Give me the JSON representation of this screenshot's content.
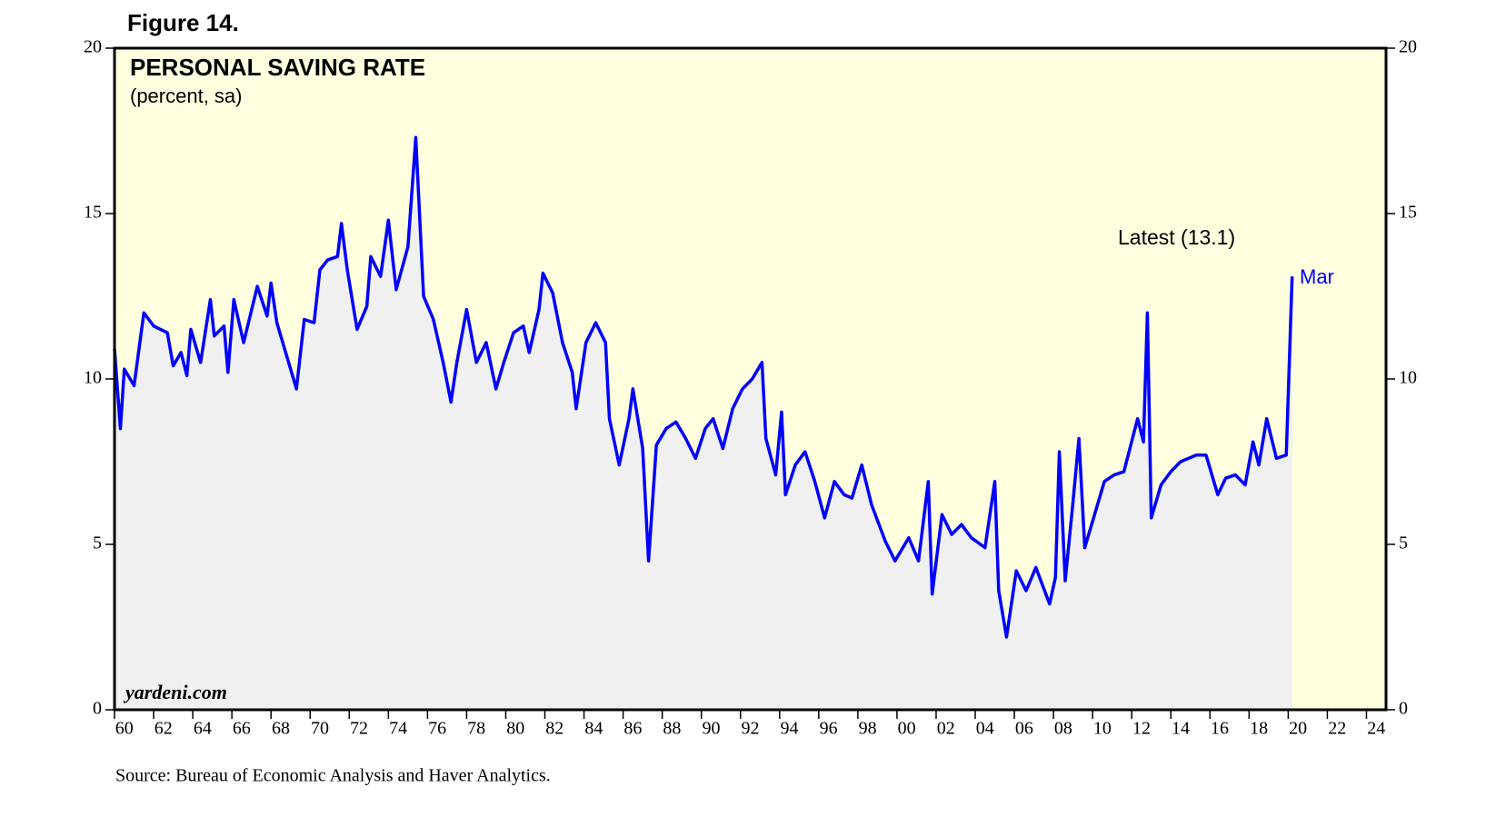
{
  "chart_data": {
    "type": "line",
    "figure_label": "Figure 14.",
    "title": "PERSONAL SAVING RATE",
    "subtitle": "(percent, sa)",
    "watermark": "yardeni.com",
    "annotation": "Latest (13.1)",
    "point_label": "Mar",
    "source": "Source: Bureau of Economic Analysis and Haver Analytics.",
    "color": "#0000ff",
    "fill_color": "#f0f0f0",
    "background": "#ffffe0",
    "x": [
      1960.0,
      1960.3,
      1960.5,
      1961.0,
      1961.5,
      1962.0,
      1962.7,
      1963.0,
      1963.4,
      1963.7,
      1963.9,
      1964.4,
      1964.9,
      1965.1,
      1965.6,
      1965.8,
      1966.1,
      1966.6,
      1967.3,
      1967.8,
      1968.0,
      1968.3,
      1968.8,
      1969.3,
      1969.7,
      1970.2,
      1970.5,
      1970.9,
      1971.4,
      1971.6,
      1971.9,
      1972.4,
      1972.9,
      1973.1,
      1973.6,
      1974.0,
      1974.4,
      1975.0,
      1975.4,
      1975.8,
      1976.3,
      1976.8,
      1977.2,
      1977.5,
      1978.0,
      1978.5,
      1979.0,
      1979.5,
      1979.9,
      1980.4,
      1980.9,
      1981.2,
      1981.7,
      1981.9,
      1982.4,
      1982.9,
      1983.4,
      1983.6,
      1984.1,
      1984.6,
      1985.1,
      1985.3,
      1985.8,
      1986.3,
      1986.5,
      1987.0,
      1987.3,
      1987.7,
      1988.2,
      1988.7,
      1989.2,
      1989.7,
      1990.2,
      1990.6,
      1991.1,
      1991.6,
      1992.1,
      1992.6,
      1993.1,
      1993.3,
      1993.8,
      1994.1,
      1994.3,
      1994.8,
      1995.3,
      1995.8,
      1996.3,
      1996.8,
      1997.3,
      1997.7,
      1998.2,
      1998.7,
      1999.4,
      1999.9,
      2000.6,
      2001.1,
      2001.6,
      2001.8,
      2002.3,
      2002.8,
      2003.3,
      2003.8,
      2004.5,
      2005.0,
      2005.2,
      2005.6,
      2006.1,
      2006.6,
      2007.1,
      2007.8,
      2008.1,
      2008.3,
      2008.6,
      2009.0,
      2009.3,
      2009.6,
      2010.1,
      2010.6,
      2011.1,
      2011.6,
      2012.3,
      2012.6,
      2012.8,
      2013.0,
      2013.5,
      2014.0,
      2014.5,
      2015.3,
      2015.8,
      2016.4,
      2016.8,
      2017.3,
      2017.8,
      2018.2,
      2018.5,
      2018.9,
      2019.4,
      2019.9,
      2020.2
    ],
    "values": [
      10.9,
      8.5,
      10.3,
      9.8,
      12.0,
      11.6,
      11.4,
      10.4,
      10.8,
      10.1,
      11.5,
      10.5,
      12.4,
      11.3,
      11.6,
      10.2,
      12.4,
      11.1,
      12.8,
      11.9,
      12.9,
      11.7,
      10.7,
      9.7,
      11.8,
      11.7,
      13.3,
      13.6,
      13.7,
      14.7,
      13.3,
      11.5,
      12.2,
      13.7,
      13.1,
      14.8,
      12.7,
      14.0,
      17.3,
      12.5,
      11.8,
      10.5,
      9.3,
      10.5,
      12.1,
      10.5,
      11.1,
      9.7,
      10.5,
      11.4,
      11.6,
      10.8,
      12.1,
      13.2,
      12.6,
      11.1,
      10.2,
      9.1,
      11.1,
      11.7,
      11.1,
      8.8,
      7.4,
      8.8,
      9.7,
      7.9,
      4.5,
      8.0,
      8.5,
      8.7,
      8.2,
      7.6,
      8.5,
      8.8,
      7.9,
      9.1,
      9.7,
      10.0,
      10.5,
      8.2,
      7.1,
      9.0,
      6.5,
      7.4,
      7.8,
      6.9,
      5.8,
      6.9,
      6.5,
      6.4,
      7.4,
      6.2,
      5.1,
      4.5,
      5.2,
      4.5,
      6.9,
      3.5,
      5.9,
      5.3,
      5.6,
      5.2,
      4.9,
      6.9,
      3.6,
      2.2,
      4.2,
      3.6,
      4.3,
      3.2,
      4.0,
      7.8,
      3.9,
      6.3,
      8.2,
      4.9,
      5.9,
      6.9,
      7.1,
      7.2,
      8.8,
      8.1,
      12.0,
      5.8,
      6.8,
      7.2,
      7.5,
      7.7,
      7.7,
      6.5,
      7.0,
      7.1,
      6.8,
      8.1,
      7.4,
      8.8,
      7.6,
      7.7,
      13.1
    ],
    "xlim": [
      1960,
      2025
    ],
    "xticks": [
      {
        "value": 1960,
        "label": "60"
      },
      {
        "value": 1962,
        "label": "62"
      },
      {
        "value": 1964,
        "label": "64"
      },
      {
        "value": 1966,
        "label": "66"
      },
      {
        "value": 1968,
        "label": "68"
      },
      {
        "value": 1970,
        "label": "70"
      },
      {
        "value": 1972,
        "label": "72"
      },
      {
        "value": 1974,
        "label": "74"
      },
      {
        "value": 1976,
        "label": "76"
      },
      {
        "value": 1978,
        "label": "78"
      },
      {
        "value": 1980,
        "label": "80"
      },
      {
        "value": 1982,
        "label": "82"
      },
      {
        "value": 1984,
        "label": "84"
      },
      {
        "value": 1986,
        "label": "86"
      },
      {
        "value": 1988,
        "label": "88"
      },
      {
        "value": 1990,
        "label": "90"
      },
      {
        "value": 1992,
        "label": "92"
      },
      {
        "value": 1994,
        "label": "94"
      },
      {
        "value": 1996,
        "label": "96"
      },
      {
        "value": 1998,
        "label": "98"
      },
      {
        "value": 2000,
        "label": "00"
      },
      {
        "value": 2002,
        "label": "02"
      },
      {
        "value": 2004,
        "label": "04"
      },
      {
        "value": 2006,
        "label": "06"
      },
      {
        "value": 2008,
        "label": "08"
      },
      {
        "value": 2010,
        "label": "10"
      },
      {
        "value": 2012,
        "label": "12"
      },
      {
        "value": 2014,
        "label": "14"
      },
      {
        "value": 2016,
        "label": "16"
      },
      {
        "value": 2018,
        "label": "18"
      },
      {
        "value": 2020,
        "label": "20"
      },
      {
        "value": 2022,
        "label": "22"
      },
      {
        "value": 2024,
        "label": "24"
      }
    ],
    "ylim": [
      0,
      20
    ],
    "yticks": [
      0,
      5,
      10,
      15,
      20
    ],
    "y2lim": [
      0,
      20
    ],
    "y2ticks": [
      0,
      5,
      10,
      15,
      20
    ]
  }
}
